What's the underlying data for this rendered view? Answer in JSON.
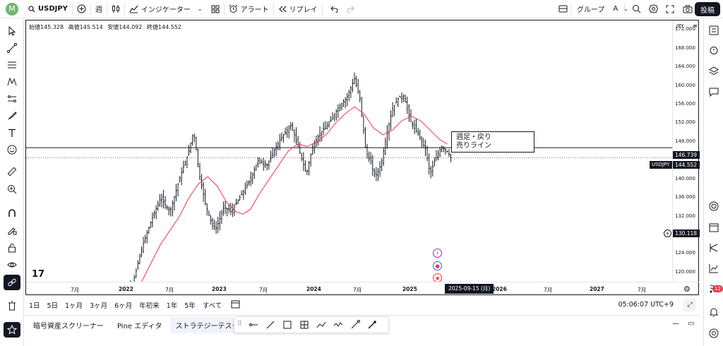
{
  "topbar": {
    "avatar": "M",
    "symbol": "USDJPY",
    "interval": "週",
    "indicators": "インジケーター",
    "alert": "アラート",
    "replay": "リプレイ",
    "group": "グループ",
    "group_id": "A",
    "post": "投稿"
  },
  "chart": {
    "ohlc": {
      "open_label": "始値",
      "open": "145.328",
      "high_label": "高値",
      "high": "145.514",
      "low_label": "安値",
      "low": "144.092",
      "close_label": "終値",
      "close": "144.552"
    },
    "currency": "JPY",
    "symbol_tag": "USDJPY",
    "current_price": "144.552",
    "line_price": "146.739",
    "cursor_price": "130.118",
    "price_ticks": [
      "172.000",
      "168.000",
      "164.000",
      "160.000",
      "156.000",
      "152.000",
      "148.000",
      "140.000",
      "136.000",
      "132.000",
      "128.000",
      "124.000",
      "120.000"
    ],
    "time_ticks": [
      "7月",
      "2022",
      "7月",
      "2023",
      "7月",
      "2024",
      "7月",
      "2025",
      "2026",
      "7月",
      "2027",
      "7月"
    ],
    "time_cursor": "2025-09-15 (月)",
    "annotation_line1": "週足・戻り",
    "annotation_line2": "売りライン",
    "logo": "17",
    "colors": {
      "ma_line": "#f23645",
      "candles": "#131722",
      "badge": "#f23645",
      "avatar": "#70b66d"
    }
  },
  "chart_data": {
    "type": "line",
    "title": "",
    "xlabel": "",
    "ylabel": "",
    "ylim": [
      118,
      174
    ],
    "series": [
      {
        "values": [
          [
            2022.0,
            115.0
          ],
          [
            2022.15,
            117.0
          ],
          [
            2022.25,
            125.0
          ],
          [
            2022.35,
            131.0
          ],
          [
            2022.45,
            136.0
          ],
          [
            2022.55,
            133.0
          ],
          [
            2022.65,
            140.0
          ],
          [
            2022.75,
            146.0
          ],
          [
            2022.8,
            150.5
          ],
          [
            2022.86,
            141.0
          ],
          [
            2022.92,
            135.0
          ],
          [
            2023.0,
            130.0
          ],
          [
            2023.04,
            129.5
          ],
          [
            2023.12,
            134.0
          ],
          [
            2023.2,
            133.0
          ],
          [
            2023.3,
            136.5
          ],
          [
            2023.4,
            140.0
          ],
          [
            2023.48,
            144.0
          ],
          [
            2023.58,
            143.0
          ],
          [
            2023.66,
            146.5
          ],
          [
            2023.75,
            149.5
          ],
          [
            2023.83,
            151.5
          ],
          [
            2023.92,
            146.0
          ],
          [
            2023.99,
            141.0
          ],
          [
            2024.06,
            147.0
          ],
          [
            2024.14,
            150.0
          ],
          [
            2024.22,
            151.5
          ],
          [
            2024.32,
            155.0
          ],
          [
            2024.42,
            157.5
          ],
          [
            2024.5,
            161.5
          ],
          [
            2024.56,
            157.0
          ],
          [
            2024.62,
            146.0
          ],
          [
            2024.67,
            143.5
          ],
          [
            2024.72,
            140.5
          ],
          [
            2024.78,
            143.0
          ],
          [
            2024.84,
            149.5
          ],
          [
            2024.9,
            155.0
          ],
          [
            2024.97,
            157.5
          ],
          [
            2025.02,
            157.8
          ],
          [
            2025.1,
            152.0
          ],
          [
            2025.18,
            149.5
          ],
          [
            2025.25,
            146.5
          ],
          [
            2025.3,
            141.0
          ],
          [
            2025.35,
            144.0
          ],
          [
            2025.42,
            147.0
          ],
          [
            2025.48,
            146.0
          ],
          [
            2025.52,
            144.552
          ]
        ]
      },
      {
        "values": [
          [
            2022.15,
            116.0
          ],
          [
            2022.25,
            118.0
          ],
          [
            2022.35,
            122.0
          ],
          [
            2022.45,
            126.0
          ],
          [
            2022.55,
            129.0
          ],
          [
            2022.65,
            132.0
          ],
          [
            2022.75,
            136.0
          ],
          [
            2022.85,
            139.0
          ],
          [
            2022.95,
            140.5
          ],
          [
            2023.05,
            138.5
          ],
          [
            2023.15,
            135.0
          ],
          [
            2023.25,
            133.0
          ],
          [
            2023.32,
            132.5
          ],
          [
            2023.4,
            133.5
          ],
          [
            2023.5,
            137.0
          ],
          [
            2023.6,
            140.0
          ],
          [
            2023.7,
            143.0
          ],
          [
            2023.8,
            146.0
          ],
          [
            2023.9,
            147.5
          ],
          [
            2024.0,
            147.0
          ],
          [
            2024.1,
            148.0
          ],
          [
            2024.2,
            149.5
          ],
          [
            2024.3,
            152.0
          ],
          [
            2024.4,
            154.0
          ],
          [
            2024.5,
            155.5
          ],
          [
            2024.6,
            154.0
          ],
          [
            2024.7,
            151.0
          ],
          [
            2024.8,
            149.5
          ],
          [
            2024.9,
            150.5
          ],
          [
            2025.0,
            152.5
          ],
          [
            2025.1,
            153.5
          ],
          [
            2025.2,
            152.5
          ],
          [
            2025.3,
            150.5
          ],
          [
            2025.4,
            148.5
          ],
          [
            2025.48,
            147.5
          ]
        ]
      }
    ],
    "hline": 146.739,
    "grid": false
  },
  "range_bar": {
    "ranges": [
      "1日",
      "5日",
      "1ヶ月",
      "3ヶ月",
      "6ヶ月",
      "年初来",
      "1年",
      "5年",
      "すべて"
    ],
    "clock": "05:06:07 UTC+9"
  },
  "bottom_panel": {
    "tabs": [
      "暗号資産スクリーナー",
      "Pine エディタ",
      "ストラテジーテスター"
    ]
  },
  "right_badge": "12"
}
